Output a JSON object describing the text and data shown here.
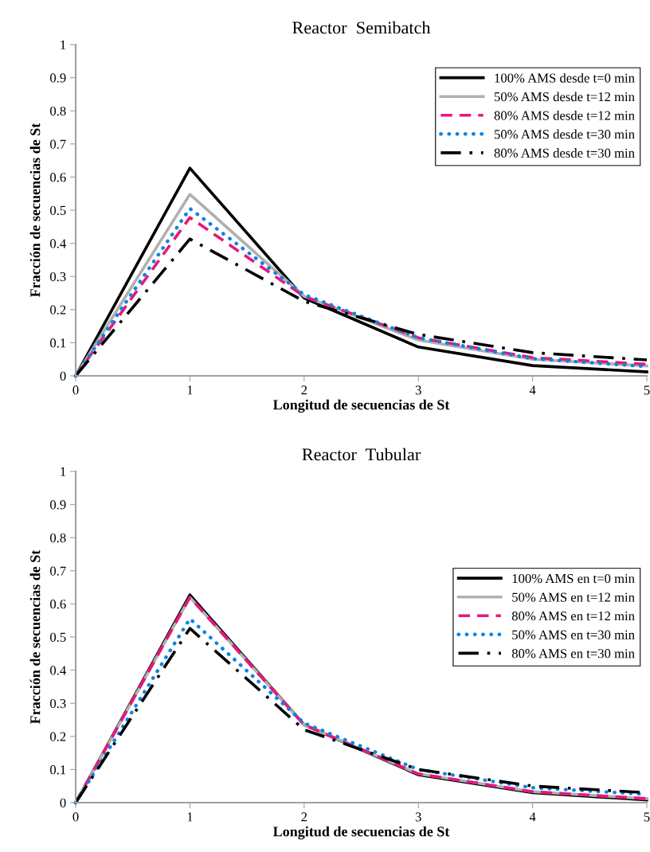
{
  "chart_data": [
    {
      "type": "line",
      "title": "Reactor  Semibatch",
      "xlabel": "Longitud de secuencias de St",
      "ylabel": "Fracción de secuencias de St",
      "x": [
        0,
        1,
        2,
        3,
        4,
        5
      ],
      "xlim": [
        0,
        5
      ],
      "xticks": [
        0,
        1,
        2,
        3,
        4,
        5
      ],
      "ylim": [
        0,
        1
      ],
      "yticks": [
        0,
        0.1,
        0.2,
        0.3,
        0.4,
        0.5,
        0.6,
        0.7,
        0.8,
        0.9,
        1
      ],
      "grid": false,
      "legend": "top right",
      "marker": "none",
      "series": [
        {
          "name": "100% AMS desde t=0 min",
          "color": "#000000",
          "line_style": "solid",
          "values": [
            0,
            0.627,
            0.235,
            0.087,
            0.031,
            0.012
          ]
        },
        {
          "name": "50% AMS desde t=12 min",
          "color": "#b0b0b0",
          "line_style": "solid",
          "values": [
            0,
            0.548,
            0.24,
            0.108,
            0.05,
            0.03
          ]
        },
        {
          "name": "80% AMS desde t=12 min",
          "color": "#e8177d",
          "line_style": "dashed",
          "values": [
            0,
            0.478,
            0.24,
            0.115,
            0.055,
            0.035
          ]
        },
        {
          "name": "50% AMS desde t=30 min",
          "color": "#0a84e4",
          "line_style": "dotted",
          "values": [
            0,
            0.505,
            0.245,
            0.115,
            0.052,
            0.028
          ]
        },
        {
          "name": "80% AMS desde t=30 min",
          "color": "#000000",
          "line_style": "dashdot",
          "values": [
            0,
            0.413,
            0.225,
            0.125,
            0.07,
            0.048
          ]
        }
      ]
    },
    {
      "type": "line",
      "title": "Reactor  Tubular",
      "xlabel": "Longitud de secuencias de St",
      "ylabel": "Fracción de secuencias de St",
      "x": [
        0,
        1,
        2,
        3,
        4,
        5
      ],
      "xlim": [
        0,
        5
      ],
      "xticks": [
        0,
        1,
        2,
        3,
        4,
        5
      ],
      "ylim": [
        0,
        1
      ],
      "yticks": [
        0,
        0.1,
        0.2,
        0.3,
        0.4,
        0.5,
        0.6,
        0.7,
        0.8,
        0.9,
        1
      ],
      "grid": false,
      "legend": "right",
      "marker": "none",
      "series": [
        {
          "name": "100% AMS en t=0 min",
          "color": "#000000",
          "line_style": "solid",
          "values": [
            0,
            0.627,
            0.235,
            0.084,
            0.03,
            0.008
          ]
        },
        {
          "name": "50% AMS en t=12 min",
          "color": "#b0b0b0",
          "line_style": "solid",
          "values": [
            0,
            0.62,
            0.235,
            0.087,
            0.033,
            0.012
          ]
        },
        {
          "name": "80% AMS en t=12 min",
          "color": "#e8177d",
          "line_style": "dashed",
          "values": [
            0,
            0.62,
            0.235,
            0.087,
            0.033,
            0.012
          ]
        },
        {
          "name": "50% AMS en t=30 min",
          "color": "#0a84e4",
          "line_style": "dotted",
          "values": [
            0,
            0.555,
            0.24,
            0.1,
            0.045,
            0.025
          ]
        },
        {
          "name": "80% AMS en t=30 min",
          "color": "#000000",
          "line_style": "dashdot",
          "values": [
            0,
            0.526,
            0.22,
            0.1,
            0.05,
            0.03
          ]
        }
      ]
    }
  ]
}
